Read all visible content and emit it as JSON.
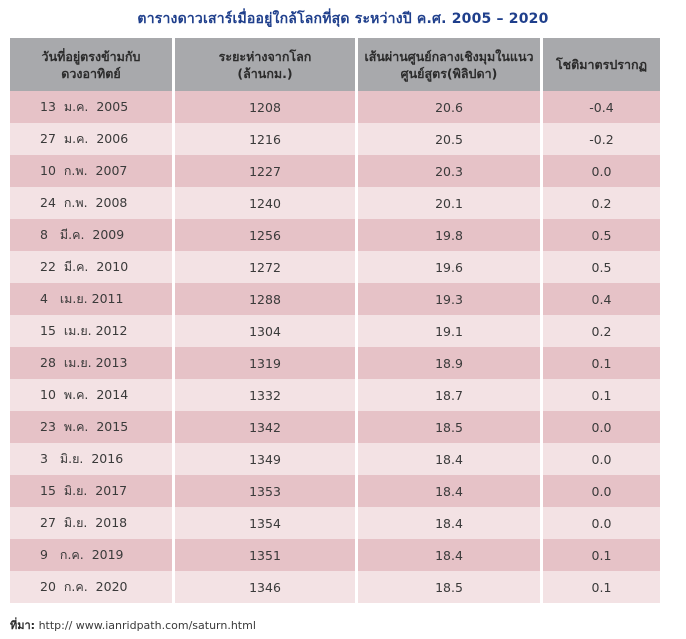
{
  "title": "ตารางดาวเสาร์เมื่ออยู่ใกล้โลกที่สุด ระหว่างปี ค.ศ. 2005 – 2020",
  "headers": {
    "date": [
      "วันที่อยู่ตรงข้ามกับ",
      "ดวงอาทิตย์"
    ],
    "distance": [
      "ระยะห่างจากโลก",
      "(ล้านกม.)"
    ],
    "diameter": [
      "เส้นผ่านศูนย์กลางเชิงมุมในแนว",
      "ศูนย์สูตร(พิลิปดา)"
    ],
    "magnitude": [
      "โชติมาตรปรากฏ"
    ]
  },
  "rows": [
    {
      "date": "13  ม.ค.  2005",
      "distance": "1208",
      "diameter": "20.6",
      "magnitude": "-0.4"
    },
    {
      "date": "27  ม.ค.  2006",
      "distance": "1216",
      "diameter": "20.5",
      "magnitude": "-0.2"
    },
    {
      "date": "10  ก.พ.  2007",
      "distance": "1227",
      "diameter": "20.3",
      "magnitude": "0.0"
    },
    {
      "date": "24  ก.พ.  2008",
      "distance": "1240",
      "diameter": "20.1",
      "magnitude": "0.2"
    },
    {
      "date": "8   มี.ค.  2009",
      "distance": "1256",
      "diameter": "19.8",
      "magnitude": "0.5"
    },
    {
      "date": "22  มี.ค.  2010",
      "distance": "1272",
      "diameter": "19.6",
      "magnitude": "0.5"
    },
    {
      "date": "4   เม.ย. 2011",
      "distance": "1288",
      "diameter": "19.3",
      "magnitude": "0.4"
    },
    {
      "date": "15  เม.ย. 2012",
      "distance": "1304",
      "diameter": "19.1",
      "magnitude": "0.2"
    },
    {
      "date": "28  เม.ย. 2013",
      "distance": "1319",
      "diameter": "18.9",
      "magnitude": "0.1"
    },
    {
      "date": "10  พ.ค.  2014",
      "distance": "1332",
      "diameter": "18.7",
      "magnitude": "0.1"
    },
    {
      "date": "23  พ.ค.  2015",
      "distance": "1342",
      "diameter": "18.5",
      "magnitude": "0.0"
    },
    {
      "date": "3   มิ.ย.  2016",
      "distance": "1349",
      "diameter": "18.4",
      "magnitude": "0.0"
    },
    {
      "date": "15  มิ.ย.  2017",
      "distance": "1353",
      "diameter": "18.4",
      "magnitude": "0.0"
    },
    {
      "date": "27  มิ.ย.  2018",
      "distance": "1354",
      "diameter": "18.4",
      "magnitude": "0.0"
    },
    {
      "date": "9   ก.ค.  2019",
      "distance": "1351",
      "diameter": "18.4",
      "magnitude": "0.1"
    },
    {
      "date": "20  ก.ค.  2020",
      "distance": "1346",
      "diameter": "18.5",
      "magnitude": "0.1"
    }
  ],
  "source": {
    "label": "ที่มา:",
    "url": "http://  www.ianridpath.com/saturn.html"
  },
  "colors": {
    "title": "#1f3f8c",
    "header_bg": "#a8a9ac",
    "row_dark": "#e6c2c7",
    "row_light": "#f3e2e4"
  }
}
